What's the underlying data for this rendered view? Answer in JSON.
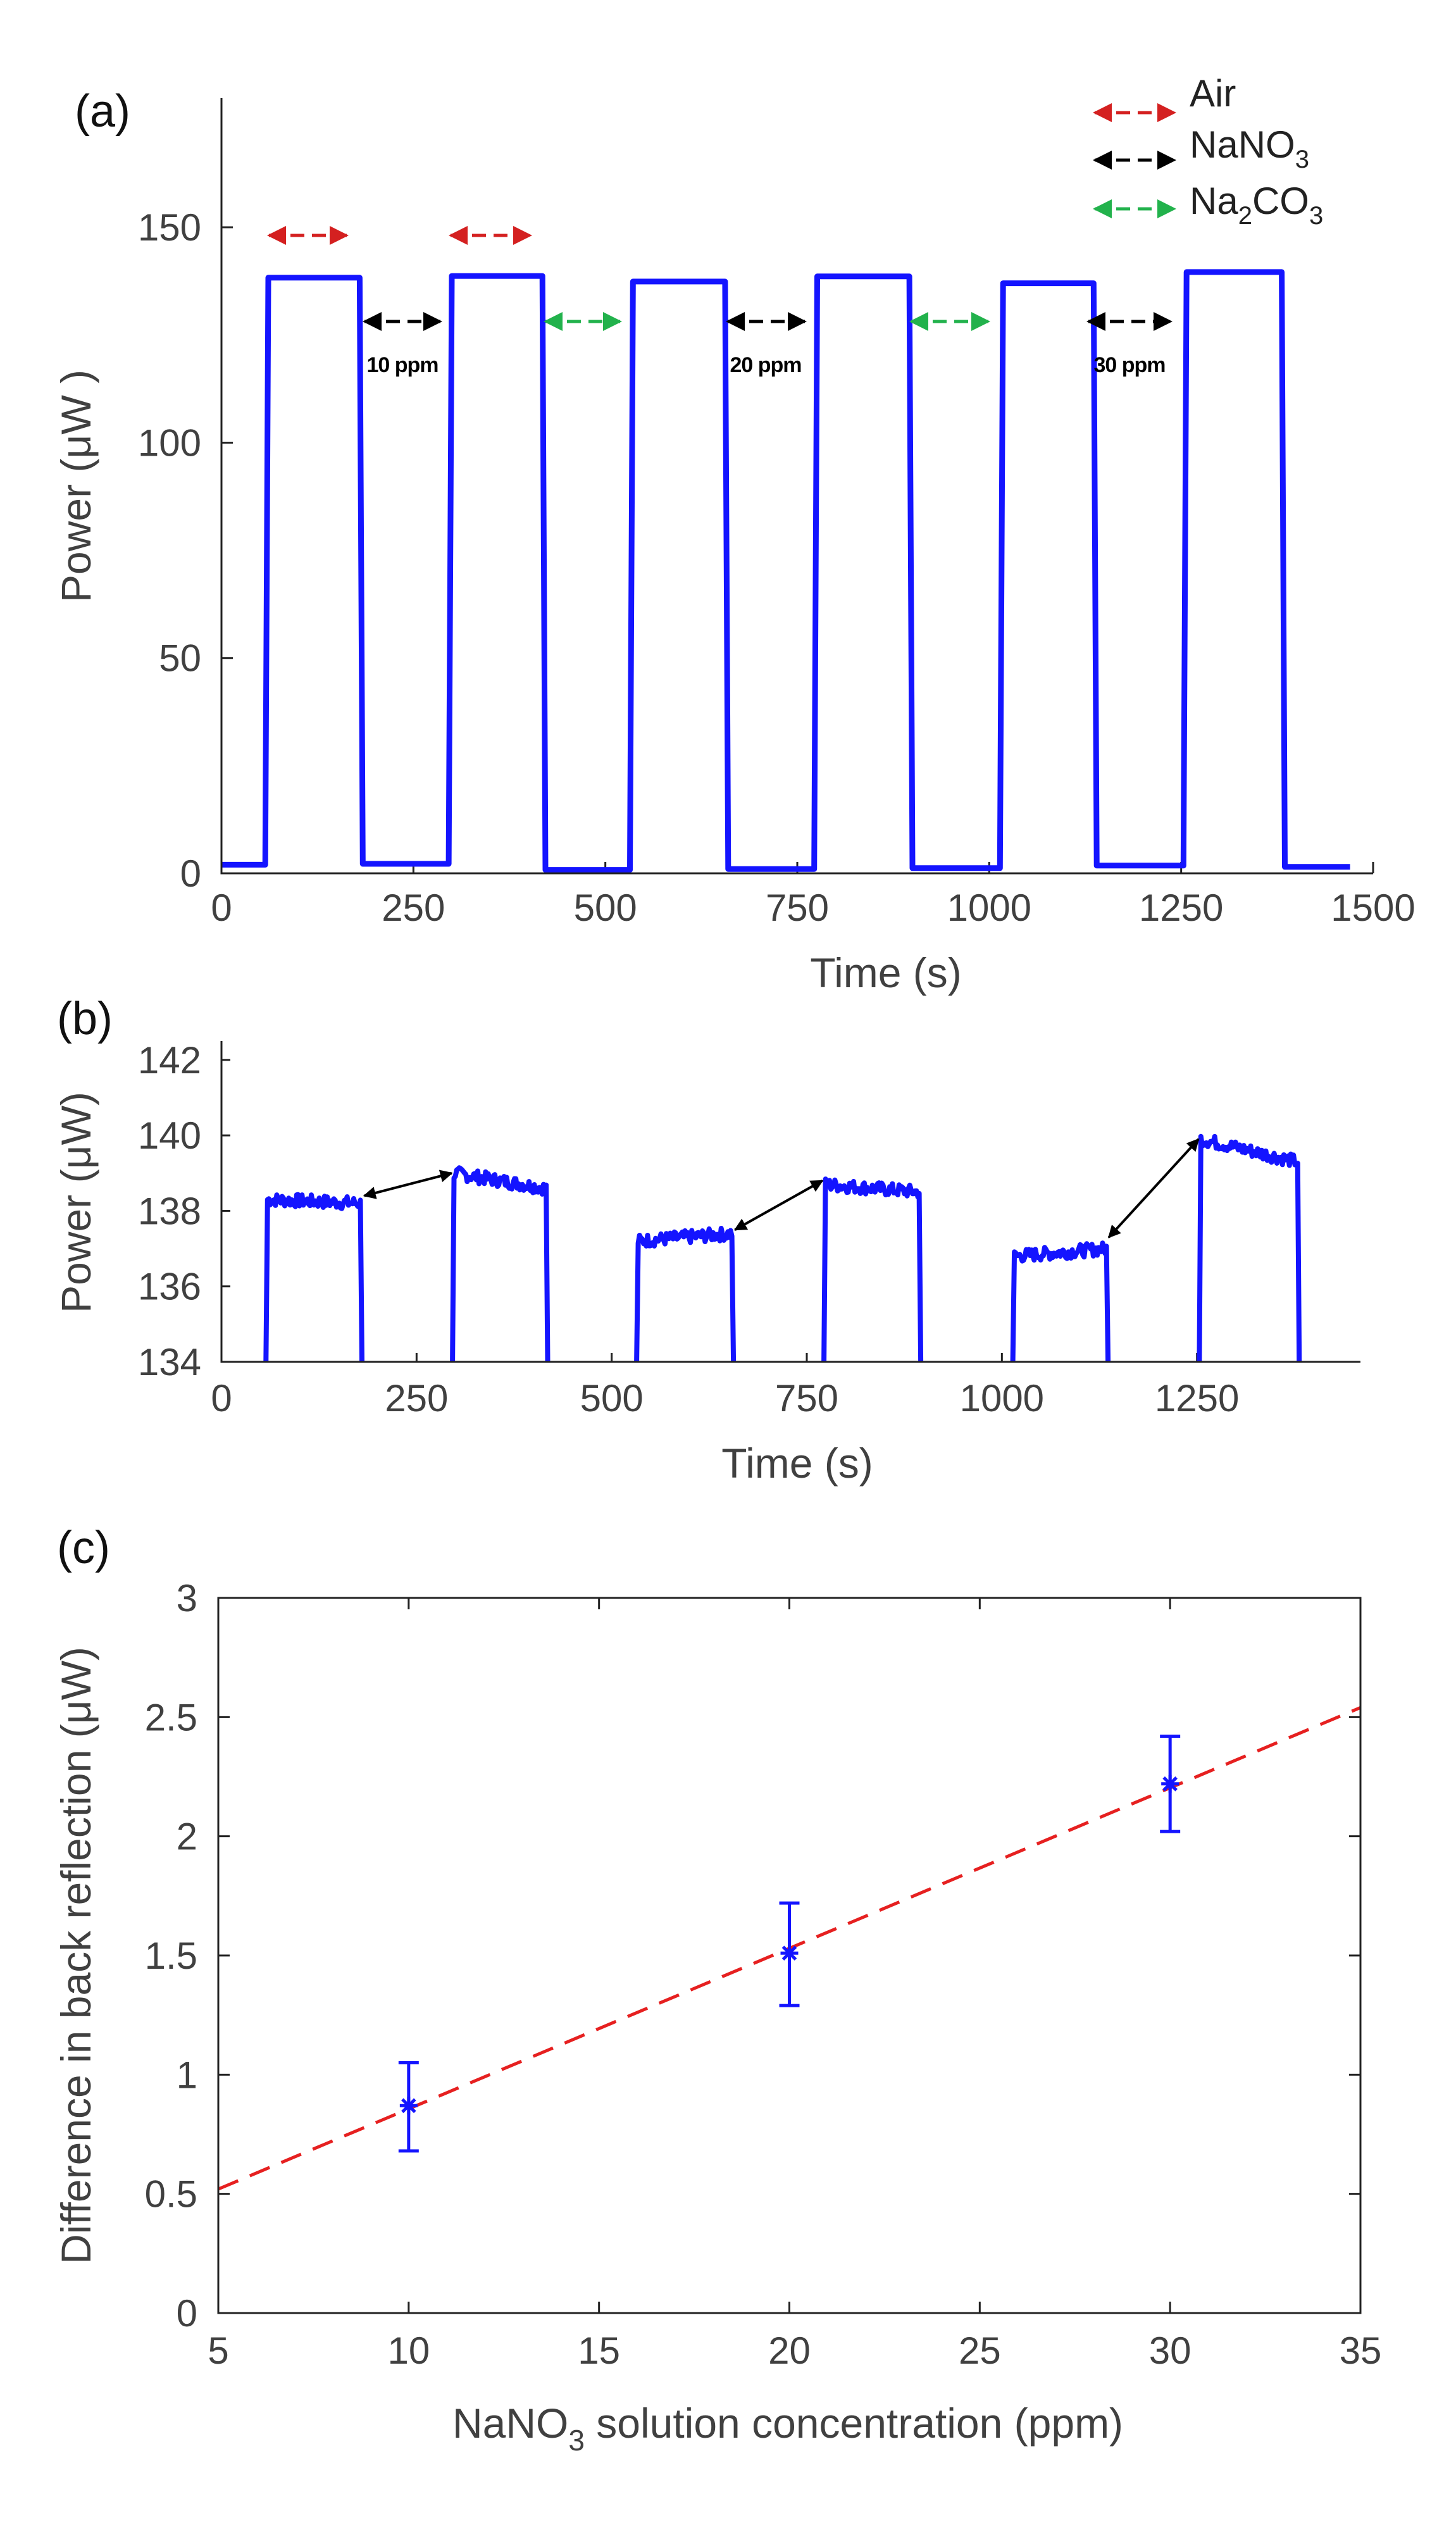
{
  "colors": {
    "trace": "#1414ff",
    "fit": "#e62020",
    "air": "#d42020",
    "nano3": "#000000",
    "na2co3": "#22b24c",
    "diff_arrow": "#000000"
  },
  "panels": {
    "a": {
      "label": "(a)"
    },
    "b": {
      "label": "(b)"
    },
    "c": {
      "label": "(c)"
    }
  },
  "legend": {
    "air": "Air",
    "nano3": "NaNO",
    "nano3_sub": "3",
    "na2co3_a": "Na",
    "na2co3_sub1": "2",
    "na2co3_b": "CO",
    "na2co3_sub2": "3"
  },
  "annotations": {
    "ppm10": "10 ppm",
    "ppm20": "20 ppm",
    "ppm30": "30 ppm"
  },
  "chart_data": [
    {
      "panel": "(a)",
      "type": "line",
      "xlabel": "Time (s)",
      "ylabel": "Power (μW )",
      "xlim": [
        0,
        1500
      ],
      "ylim": [
        0,
        180
      ],
      "xticks": [
        0,
        250,
        500,
        750,
        1000,
        1250,
        1500
      ],
      "yticks": [
        0,
        50,
        100,
        150
      ],
      "segments": [
        {
          "x0": 0,
          "x1": 57,
          "level": 2.0,
          "state": "low"
        },
        {
          "x0": 57,
          "x1": 180,
          "level": 138.3,
          "state": "Air"
        },
        {
          "x0": 180,
          "x1": 296,
          "level": 2.2,
          "state": "NaNO3 10 ppm"
        },
        {
          "x0": 296,
          "x1": 418,
          "level": 138.7,
          "state": "Air"
        },
        {
          "x0": 418,
          "x1": 532,
          "level": 0.8,
          "state": "Na2CO3"
        },
        {
          "x0": 532,
          "x1": 656,
          "level": 137.4,
          "state": "Air"
        },
        {
          "x0": 656,
          "x1": 772,
          "level": 1.0,
          "state": "NaNO3 20 ppm"
        },
        {
          "x0": 772,
          "x1": 896,
          "level": 138.6,
          "state": "Air"
        },
        {
          "x0": 896,
          "x1": 1014,
          "level": 1.2,
          "state": "Na2CO3"
        },
        {
          "x0": 1014,
          "x1": 1136,
          "level": 137.0,
          "state": "Air"
        },
        {
          "x0": 1136,
          "x1": 1253,
          "level": 1.8,
          "state": "NaNO3 30 ppm"
        },
        {
          "x0": 1253,
          "x1": 1381,
          "level": 139.6,
          "state": "Air"
        },
        {
          "x0": 1381,
          "x1": 1470,
          "level": 1.5,
          "state": "low"
        }
      ],
      "legend_placement": "top-right"
    },
    {
      "panel": "(b)",
      "type": "line",
      "xlabel": "Time (s)",
      "ylabel": "Power (μW)",
      "xlim": [
        0,
        1500
      ],
      "ylim": [
        134,
        142.5
      ],
      "xticks": [
        0,
        250,
        500,
        750,
        1000,
        1250
      ],
      "yticks": [
        134,
        136,
        138,
        140,
        142
      ],
      "plateaus": [
        {
          "x0": 57,
          "x1": 180,
          "y_start": 138.3,
          "y_end": 138.2
        },
        {
          "x0": 296,
          "x1": 418,
          "y_start": 139.0,
          "y_end": 138.6
        },
        {
          "x0": 532,
          "x1": 656,
          "y_start": 137.2,
          "y_end": 137.4
        },
        {
          "x0": 772,
          "x1": 896,
          "y_start": 138.7,
          "y_end": 138.5
        },
        {
          "x0": 1014,
          "x1": 1136,
          "y_start": 136.8,
          "y_end": 137.0
        },
        {
          "x0": 1253,
          "x1": 1381,
          "y_start": 139.9,
          "y_end": 139.3
        }
      ],
      "difference_arrows": [
        {
          "from": [
            183,
            138.4
          ],
          "to": [
            295,
            139.0
          ]
        },
        {
          "from": [
            658,
            137.5
          ],
          "to": [
            770,
            138.8
          ]
        },
        {
          "from": [
            1137,
            137.3
          ],
          "to": [
            1252,
            139.9
          ]
        }
      ]
    },
    {
      "panel": "(c)",
      "type": "scatter",
      "xlabel_main": "NaNO",
      "xlabel_sub": "3",
      "xlabel_rest": " solution concentration (ppm)",
      "ylabel": "Difference in back reflection (μW)",
      "xlim": [
        5,
        35
      ],
      "ylim": [
        0,
        3
      ],
      "xticks": [
        5,
        10,
        15,
        20,
        25,
        30,
        35
      ],
      "yticks": [
        0,
        0.5,
        1,
        1.5,
        2,
        2.5,
        3
      ],
      "points": [
        {
          "x": 10,
          "y": 0.87,
          "err_low": 0.68,
          "err_high": 1.05
        },
        {
          "x": 20,
          "y": 1.51,
          "err_low": 1.29,
          "err_high": 1.72
        },
        {
          "x": 30,
          "y": 2.22,
          "err_low": 2.02,
          "err_high": 2.42
        }
      ],
      "fit_line": {
        "x": [
          5,
          35
        ],
        "y": [
          0.52,
          2.54
        ],
        "style": "dashed"
      }
    }
  ]
}
